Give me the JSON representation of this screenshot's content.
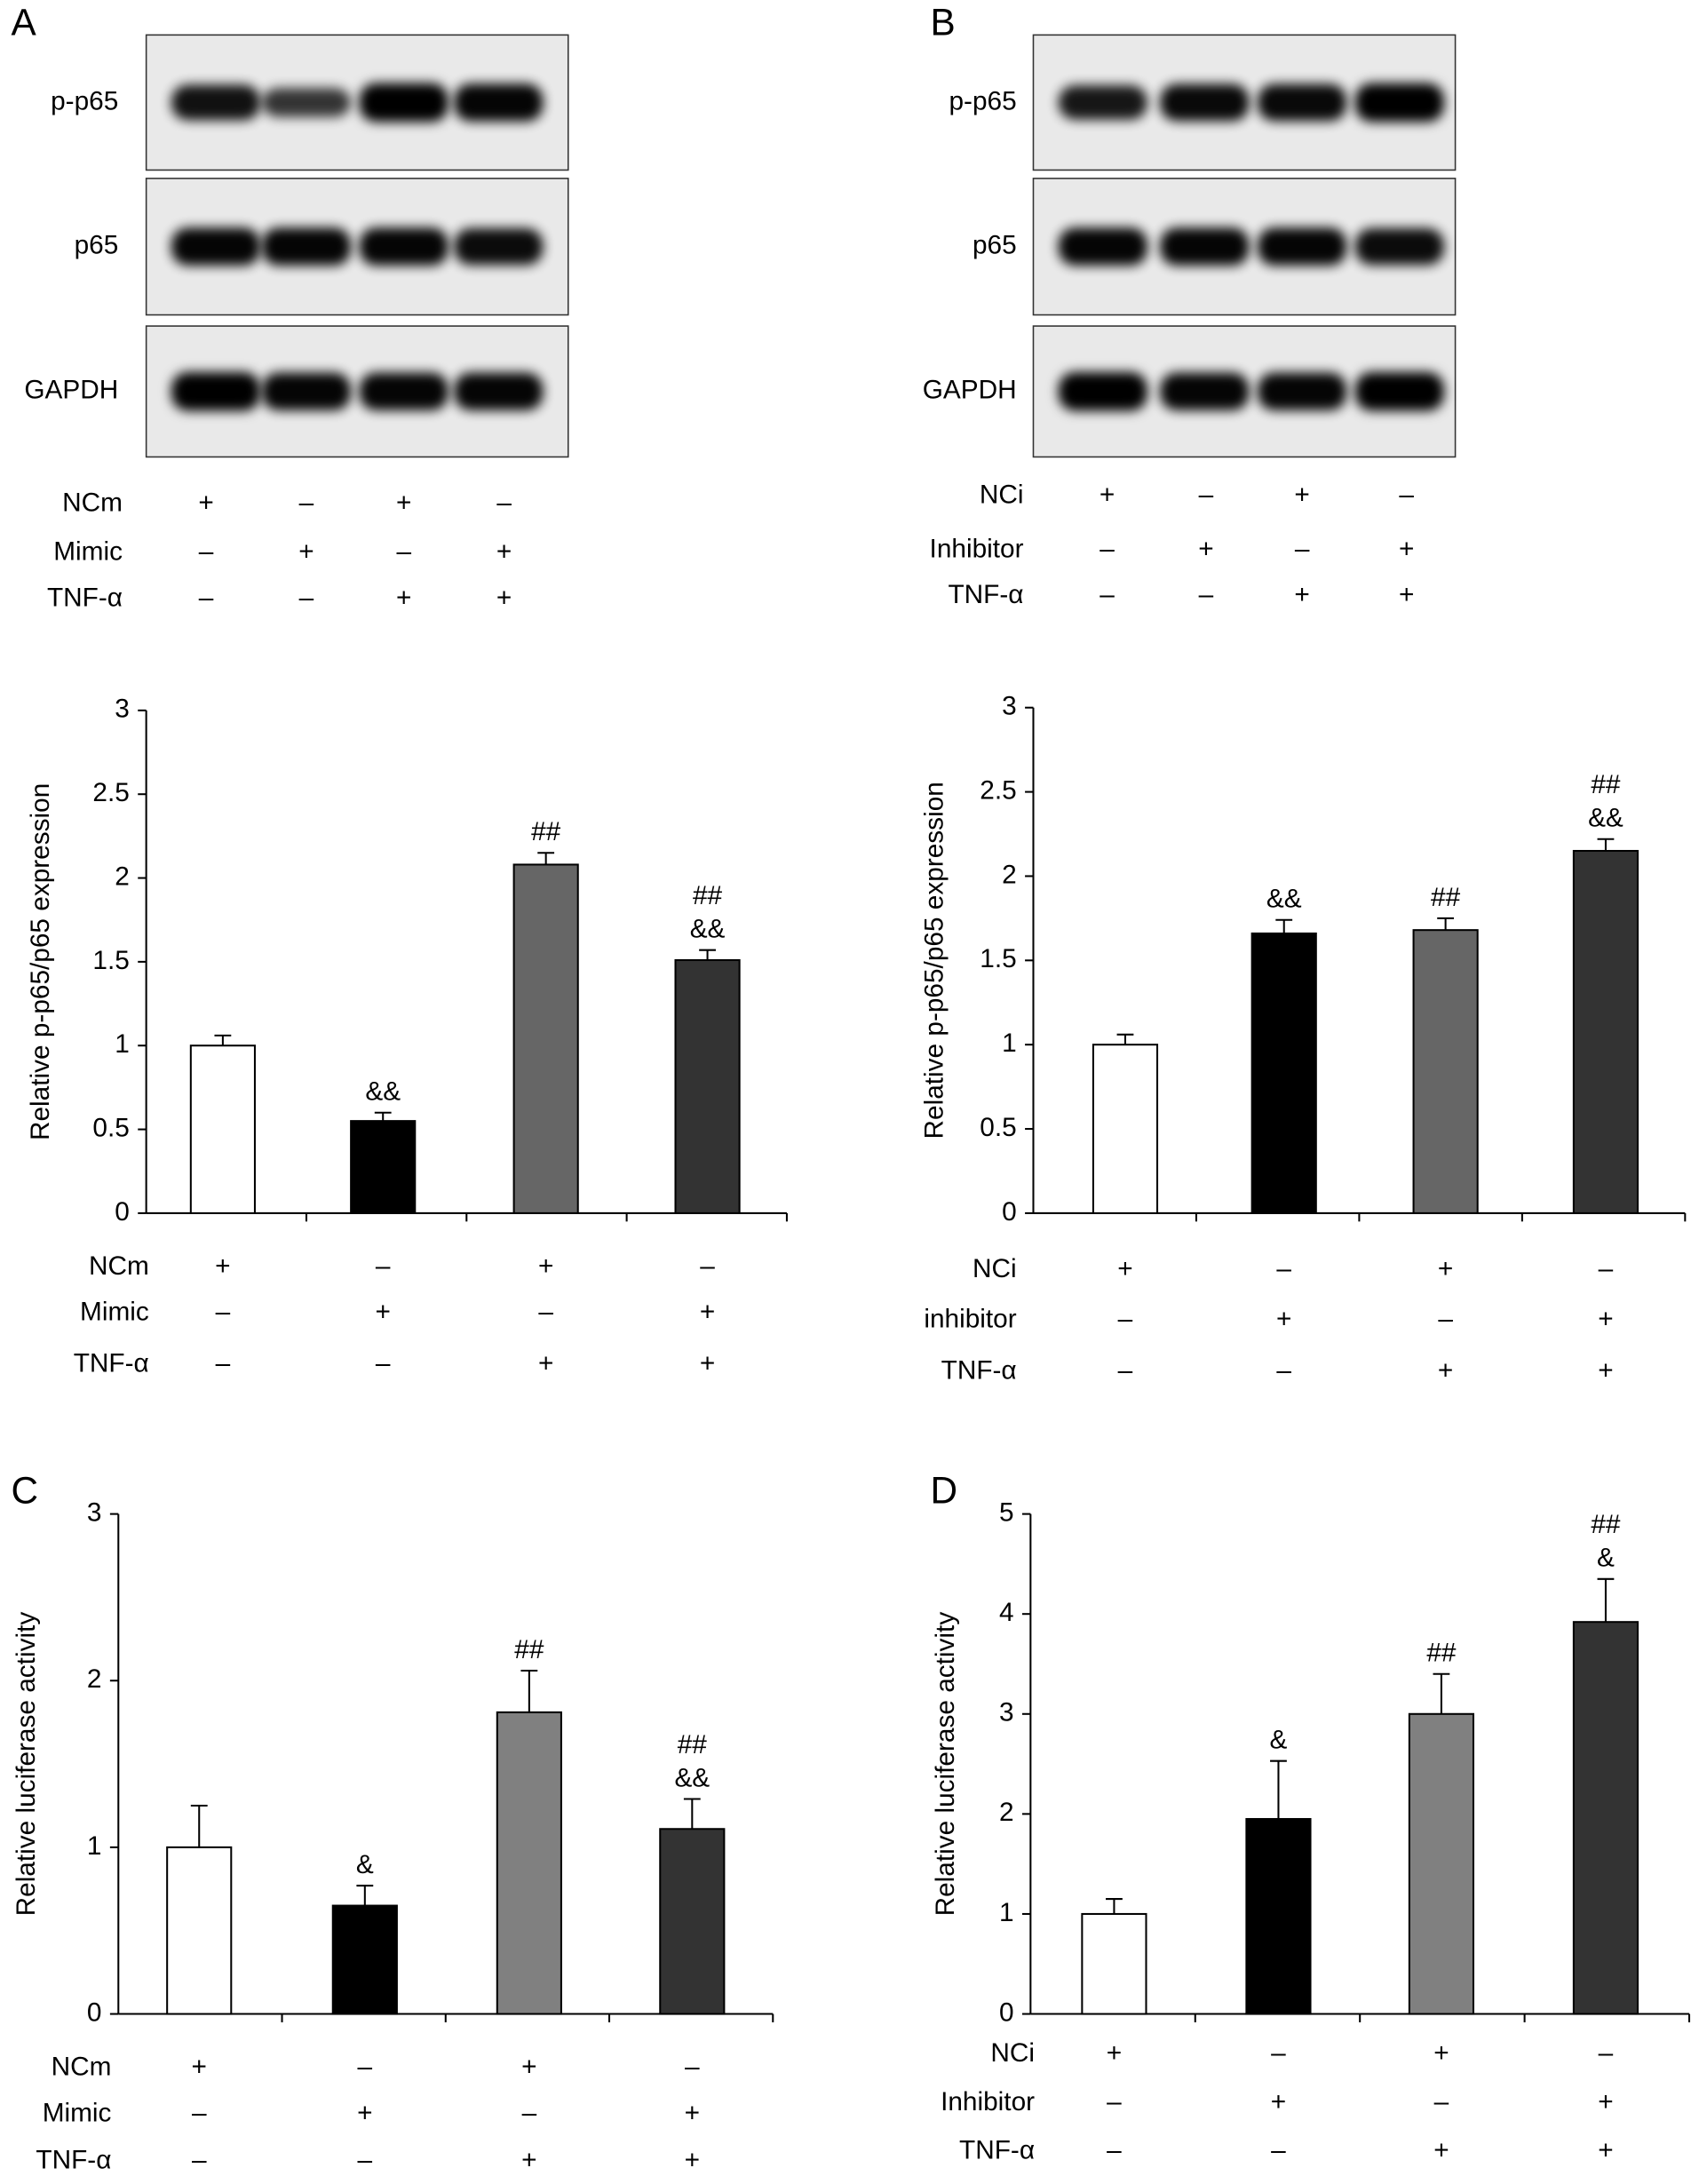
{
  "blots": [
    {
      "panel": "A",
      "rows": [
        "p-p65",
        "p65",
        "GAPDH"
      ],
      "conditions": [
        {
          "name": "NCm",
          "signs": [
            "+",
            "–",
            "+",
            "–"
          ]
        },
        {
          "name": "Mimic",
          "signs": [
            "–",
            "+",
            "–",
            "+"
          ]
        },
        {
          "name": "TNF-α",
          "signs": [
            "–",
            "–",
            "+",
            "+"
          ]
        }
      ]
    },
    {
      "panel": "B",
      "rows": [
        "p-p65",
        "p65",
        "GAPDH"
      ],
      "conditions": [
        {
          "name": "NCi",
          "signs": [
            "+",
            "–",
            "+",
            "–"
          ]
        },
        {
          "name": "Inhibitor",
          "signs": [
            "–",
            "+",
            "–",
            "+"
          ]
        },
        {
          "name": "TNF-α",
          "signs": [
            "–",
            "–",
            "+",
            "+"
          ]
        }
      ]
    }
  ],
  "chart_data": [
    {
      "type": "bar",
      "ylabel": "Relative p-p65/p65 expression",
      "ylim": [
        0,
        3
      ],
      "yticks": [
        0,
        0.5,
        1,
        1.5,
        2,
        2.5,
        3
      ],
      "values": [
        1,
        0.55,
        2.08,
        1.51
      ],
      "errors": [
        0.06,
        0.05,
        0.07,
        0.06
      ],
      "colors": [
        "#ffffff",
        "#000000",
        "#666666",
        "#333333"
      ],
      "annotations": [
        [],
        [
          "&&"
        ],
        [
          "##"
        ],
        [
          "##",
          "&&"
        ]
      ],
      "conditions": [
        {
          "name": "NCm",
          "signs": [
            "+",
            "–",
            "+",
            "–"
          ]
        },
        {
          "name": "Mimic",
          "signs": [
            "–",
            "+",
            "–",
            "+"
          ]
        },
        {
          "name": "TNF-α",
          "signs": [
            "–",
            "–",
            "+",
            "+"
          ]
        }
      ]
    },
    {
      "type": "bar",
      "ylabel": "Relative p-p65/p65 expression",
      "ylim": [
        0,
        3
      ],
      "yticks": [
        0,
        0.5,
        1,
        1.5,
        2,
        2.5,
        3
      ],
      "values": [
        1,
        1.66,
        1.68,
        2.15
      ],
      "errors": [
        0.06,
        0.08,
        0.07,
        0.07
      ],
      "colors": [
        "#ffffff",
        "#000000",
        "#666666",
        "#333333"
      ],
      "annotations": [
        [],
        [
          "&&"
        ],
        [
          "##"
        ],
        [
          "##",
          "&&"
        ]
      ],
      "conditions": [
        {
          "name": "NCi",
          "signs": [
            "+",
            "–",
            "+",
            "–"
          ]
        },
        {
          "name": "inhibitor",
          "signs": [
            "–",
            "+",
            "–",
            "+"
          ]
        },
        {
          "name": "TNF-α",
          "signs": [
            "–",
            "–",
            "+",
            "+"
          ]
        }
      ]
    },
    {
      "type": "bar",
      "panel": "C",
      "ylabel": "Relative luciferase activity",
      "ylim": [
        0,
        3
      ],
      "yticks": [
        0,
        1,
        2,
        3
      ],
      "values": [
        1,
        0.65,
        1.81,
        1.11
      ],
      "errors": [
        0.25,
        0.12,
        0.25,
        0.18
      ],
      "colors": [
        "#ffffff",
        "#000000",
        "#808080",
        "#333333"
      ],
      "annotations": [
        [],
        [
          "&"
        ],
        [
          "##"
        ],
        [
          "##",
          "&&"
        ]
      ],
      "conditions": [
        {
          "name": "NCm",
          "signs": [
            "+",
            "–",
            "+",
            "–"
          ]
        },
        {
          "name": "Mimic",
          "signs": [
            "–",
            "+",
            "–",
            "+"
          ]
        },
        {
          "name": "TNF-α",
          "signs": [
            "–",
            "–",
            "+",
            "+"
          ]
        }
      ]
    },
    {
      "type": "bar",
      "panel": "D",
      "ylabel": "Relative luciferase activity",
      "ylim": [
        0,
        5
      ],
      "yticks": [
        0,
        1,
        2,
        3,
        4,
        5
      ],
      "values": [
        1,
        1.95,
        3.0,
        3.92
      ],
      "errors": [
        0.15,
        0.58,
        0.4,
        0.43
      ],
      "colors": [
        "#ffffff",
        "#000000",
        "#808080",
        "#333333"
      ],
      "annotations": [
        [],
        [
          "&"
        ],
        [
          "##"
        ],
        [
          "##",
          "&"
        ]
      ],
      "conditions": [
        {
          "name": "NCi",
          "signs": [
            "+",
            "–",
            "+",
            "–"
          ]
        },
        {
          "name": "Inhibitor",
          "signs": [
            "–",
            "+",
            "–",
            "+"
          ]
        },
        {
          "name": "TNF-α",
          "signs": [
            "–",
            "–",
            "+",
            "+"
          ]
        }
      ]
    }
  ]
}
